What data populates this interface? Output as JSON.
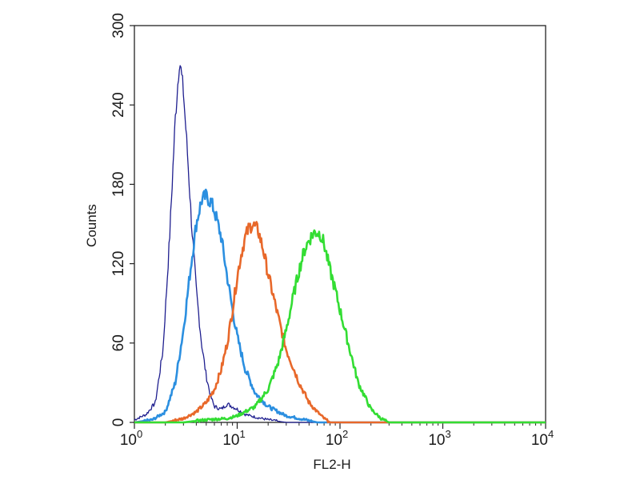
{
  "chart_data": {
    "type": "line",
    "xlabel": "FL2-H",
    "ylabel": "Counts",
    "x_scale": "log",
    "xlim": [
      1,
      10000
    ],
    "ylim": [
      0,
      300
    ],
    "y_ticks": [
      "0",
      "60",
      "120",
      "180",
      "240",
      "300"
    ],
    "x_ticks": [
      {
        "value": 1,
        "base": "10",
        "exp": "0"
      },
      {
        "value": 10,
        "base": "10",
        "exp": "1"
      },
      {
        "value": 100,
        "base": "10",
        "exp": "2"
      },
      {
        "value": 1000,
        "base": "10",
        "exp": "3"
      },
      {
        "value": 10000,
        "base": "10",
        "exp": "4"
      }
    ],
    "grid": false,
    "series": [
      {
        "color": "#1f1f8f",
        "stroke_width": 1.3,
        "x": [
          1,
          1.3,
          1.6,
          1.9,
          2.2,
          2.5,
          2.75,
          3.0,
          3.3,
          3.6,
          4.0,
          4.5,
          5.0,
          5.5,
          6.0,
          7.0,
          8.0,
          10,
          12,
          15,
          20,
          30,
          10000
        ],
        "y": [
          2,
          6,
          15,
          55,
          140,
          230,
          275,
          250,
          200,
          150,
          100,
          60,
          35,
          20,
          12,
          10,
          14,
          10,
          6,
          4,
          2,
          0,
          0
        ]
      },
      {
        "color": "#2b8fe0",
        "stroke_width": 2.6,
        "x": [
          1,
          1.5,
          2.0,
          2.5,
          3.0,
          3.5,
          4.0,
          4.5,
          5.0,
          5.5,
          6.0,
          7.0,
          8.0,
          9.0,
          10,
          12,
          15,
          20,
          25,
          30,
          40,
          60,
          10000
        ],
        "y": [
          0,
          2,
          8,
          30,
          70,
          115,
          150,
          168,
          171,
          167,
          160,
          140,
          110,
          85,
          65,
          40,
          22,
          12,
          8,
          5,
          3,
          0,
          0
        ]
      },
      {
        "color": "#e8682a",
        "stroke_width": 2.6,
        "x": [
          1,
          2,
          3,
          4,
          5,
          6,
          7,
          8,
          9,
          10,
          11,
          12,
          13,
          14,
          16,
          18,
          20,
          25,
          30,
          40,
          50,
          60,
          70,
          80,
          10000
        ],
        "y": [
          0,
          0,
          3,
          8,
          15,
          25,
          40,
          60,
          85,
          110,
          128,
          140,
          147,
          150,
          145,
          130,
          112,
          80,
          55,
          30,
          15,
          8,
          3,
          0,
          0
        ]
      },
      {
        "color": "#33dd33",
        "stroke_width": 2.6,
        "x": [
          1,
          3,
          5,
          8,
          10,
          15,
          20,
          25,
          30,
          35,
          40,
          45,
          50,
          55,
          60,
          65,
          70,
          80,
          90,
          100,
          120,
          150,
          200,
          250,
          300,
          10000
        ],
        "y": [
          0,
          0,
          2,
          3,
          5,
          12,
          25,
          45,
          70,
          95,
          115,
          130,
          138,
          143,
          144,
          142,
          135,
          115,
          100,
          85,
          60,
          30,
          10,
          3,
          0,
          0
        ]
      }
    ]
  }
}
